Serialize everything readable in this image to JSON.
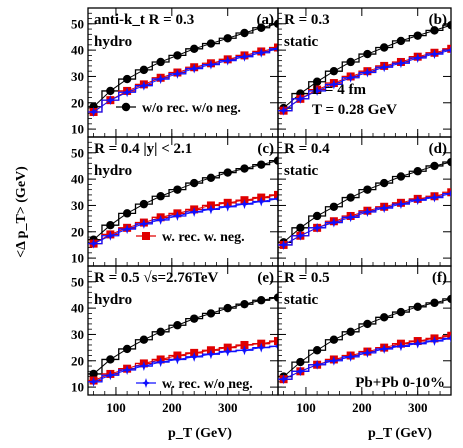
{
  "chart_data": {
    "type": "line",
    "y_axis_title": "<Δ p_T> (GeV)",
    "x_axis_title": "p_T (GeV)",
    "x_ticks": [
      100,
      200,
      300
    ],
    "y_ticks": [
      10,
      20,
      30,
      40,
      50
    ],
    "xlim": [
      50,
      390
    ],
    "ylim": [
      7,
      56
    ],
    "x": [
      60,
      90,
      120,
      150,
      180,
      210,
      240,
      270,
      300,
      330,
      360,
      390
    ],
    "legend": [
      {
        "label": "w/o rec. w/o neg.",
        "color": "#000000",
        "marker": "circle"
      },
      {
        "label": "w. rec. w. neg.",
        "color": "#e00000",
        "marker": "square"
      },
      {
        "label": "w. rec. w/o neg.",
        "color": "#1010ff",
        "marker": "star"
      }
    ],
    "panels": [
      {
        "id": "a",
        "tag": "(a)",
        "texts": [
          "anti-k_t R = 0.3",
          "hydro"
        ],
        "legend_index": 0,
        "series": [
          {
            "color": "#000000",
            "values": [
              18.5,
              24.5,
              29,
              32.5,
              35.5,
              38,
              40.5,
              42.5,
              44.5,
              46.5,
              48.5,
              50
            ]
          },
          {
            "color": "#e00000",
            "values": [
              16.5,
              21,
              24.5,
              27,
              29.5,
              31.5,
              33.5,
              35,
              36.5,
              38,
              39.5,
              41
            ]
          },
          {
            "color": "#1010ff",
            "values": [
              16.5,
              21,
              24,
              26.5,
              29,
              31,
              33,
              34.5,
              36,
              37.5,
              39,
              40.5
            ]
          }
        ]
      },
      {
        "id": "b",
        "tag": "(b)",
        "texts": [
          "R = 0.3",
          "static",
          "L = 4 fm",
          "T = 0.28 GeV"
        ],
        "legend_index": null,
        "series": [
          {
            "color": "#000000",
            "values": [
              18,
              23.5,
              28,
              32,
              35.5,
              38.5,
              41,
              43.5,
              45.5,
              47.5,
              49.5,
              51
            ]
          },
          {
            "color": "#e00000",
            "values": [
              17,
              21.5,
              25,
              27.5,
              30,
              32,
              34,
              35.5,
              37.5,
              39,
              40.5,
              42
            ]
          },
          {
            "color": "#1010ff",
            "values": [
              17,
              21.5,
              24.5,
              27,
              29.5,
              31.5,
              33.5,
              35,
              37,
              38.5,
              40,
              41.5
            ]
          }
        ]
      },
      {
        "id": "c",
        "tag": "(c)",
        "texts": [
          "R = 0.4 |y| < 2.1",
          "hydro"
        ],
        "legend_index": 1,
        "series": [
          {
            "color": "#000000",
            "values": [
              17,
              22.5,
              27,
              30.5,
              33.5,
              36,
              38.5,
              40.5,
              42.5,
              44,
              45.5,
              47
            ]
          },
          {
            "color": "#e00000",
            "values": [
              15.5,
              19,
              21.5,
              23.5,
              25.5,
              27,
              28.5,
              30,
              31,
              32,
              33,
              34
            ]
          },
          {
            "color": "#1010ff",
            "values": [
              15.5,
              18.5,
              21,
              23,
              24.5,
              26,
              27.5,
              28.5,
              29.5,
              30.5,
              31.5,
              32.5
            ]
          }
        ]
      },
      {
        "id": "d",
        "tag": "(d)",
        "texts": [
          "R = 0.4",
          "static"
        ],
        "legend_index": null,
        "series": [
          {
            "color": "#000000",
            "values": [
              16,
              21.5,
              26,
              29.5,
              33,
              36,
              38.5,
              41,
              43,
              45,
              46.5,
              48
            ]
          },
          {
            "color": "#e00000",
            "values": [
              15,
              18.5,
              21.5,
              24,
              26,
              28,
              29.5,
              31,
              32.5,
              33.5,
              35,
              36
            ]
          },
          {
            "color": "#1010ff",
            "values": [
              15,
              18.5,
              21.5,
              23.5,
              25.5,
              27.5,
              29,
              30.5,
              32,
              33,
              34.5,
              35.5
            ]
          }
        ]
      },
      {
        "id": "e",
        "tag": "(e)",
        "texts": [
          "R = 0.5 √s=2.76TeV",
          "hydro"
        ],
        "legend_index": 2,
        "series": [
          {
            "color": "#000000",
            "values": [
              15,
              20.5,
              24.5,
              28,
              31,
              33.5,
              36,
              38,
              40,
              41.5,
              43,
              44
            ]
          },
          {
            "color": "#e00000",
            "values": [
              12.5,
              15,
              17,
              19,
              20.5,
              22,
              23,
              24,
              25,
              26,
              26.5,
              27.5
            ]
          },
          {
            "color": "#1010ff",
            "values": [
              12,
              14.5,
              16.5,
              18,
              19.5,
              20.5,
              21.5,
              22.5,
              23.5,
              24,
              25,
              25.5
            ]
          }
        ]
      },
      {
        "id": "f",
        "tag": "(f)",
        "texts": [
          "R = 0.5",
          "static",
          "Pb+Pb 0-10%"
        ],
        "legend_index": null,
        "series": [
          {
            "color": "#000000",
            "values": [
              14,
              19.5,
              24,
              28,
              31,
              34,
              36.5,
              38.5,
              40.5,
              42,
              43.5,
              45
            ]
          },
          {
            "color": "#e00000",
            "values": [
              13,
              16,
              18.5,
              20.5,
              22,
              23.5,
              25,
              26.5,
              27.5,
              28.5,
              29.5,
              30.5
            ]
          },
          {
            "color": "#1010ff",
            "values": [
              13,
              16,
              18.5,
              20,
              21.5,
              23,
              24.5,
              25.5,
              26.5,
              27.5,
              28.5,
              29.5
            ]
          }
        ]
      }
    ]
  }
}
